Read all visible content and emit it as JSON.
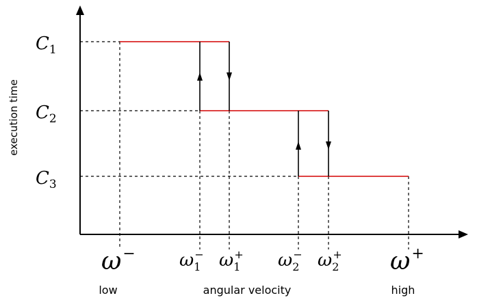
{
  "y_axis_label": "execution time",
  "x_axis_label": "angular velocity",
  "low_label": "low",
  "high_label": "high",
  "levels": [
    {
      "base": "C",
      "sub": "1"
    },
    {
      "base": "C",
      "sub": "2"
    },
    {
      "base": "C",
      "sub": "3"
    }
  ],
  "omega_min": {
    "base": "ω",
    "sup": "−"
  },
  "omega_max": {
    "base": "ω",
    "sup": "+"
  },
  "thresholds": [
    {
      "base": "ω",
      "sub": "1",
      "sup": "−"
    },
    {
      "base": "ω",
      "sub": "1",
      "sup": "+"
    },
    {
      "base": "ω",
      "sub": "2",
      "sup": "−"
    },
    {
      "base": "ω",
      "sub": "2",
      "sup": "+"
    }
  ],
  "colors": {
    "step_line": "#d40000",
    "axis": "#000000"
  }
}
